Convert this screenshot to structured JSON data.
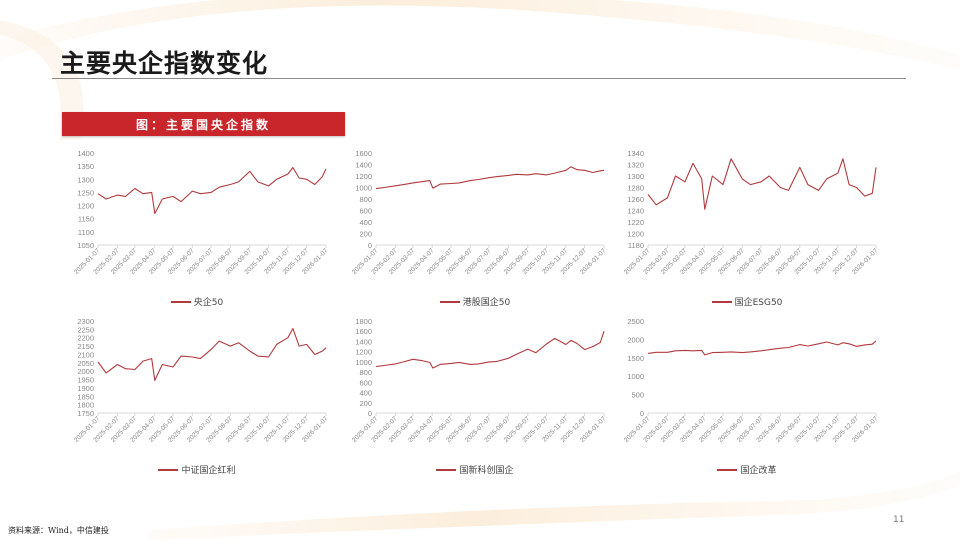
{
  "page": {
    "title": "主要央企指数变化",
    "figure_banner": "图：主要国央企指数",
    "source": "资料来源：Wind，中信建投",
    "page_number": "11"
  },
  "colors": {
    "line": "#b03a3e",
    "banner": "#c8262b",
    "axis_text": "#888888",
    "axis_line": "#d9d9d9"
  },
  "x_ticks": [
    "2025-01-07",
    "2025-02-07",
    "2025-03-07",
    "2025-04-07",
    "2025-05-07",
    "2025-06-07",
    "2025-07-07",
    "2025-08-07",
    "2025-09-07",
    "2025-10-07",
    "2025-11-07",
    "2025-12-07",
    "2026-01-07"
  ],
  "chart_data": [
    {
      "type": "line",
      "title": "央企50",
      "legend": [
        "央企50"
      ],
      "ylim": [
        1050,
        1400
      ],
      "yticks": [
        1050,
        1100,
        1150,
        1200,
        1250,
        1300,
        1350,
        1400
      ],
      "x": [
        "2025-01-07",
        "2025-01-20",
        "2025-02-07",
        "2025-02-20",
        "2025-03-07",
        "2025-03-20",
        "2025-04-03",
        "2025-04-08",
        "2025-04-20",
        "2025-05-07",
        "2025-05-20",
        "2025-06-07",
        "2025-06-20",
        "2025-07-07",
        "2025-07-20",
        "2025-08-07",
        "2025-08-20",
        "2025-09-07",
        "2025-09-20",
        "2025-10-07",
        "2025-10-20",
        "2025-11-07",
        "2025-11-15",
        "2025-11-25",
        "2025-12-07",
        "2025-12-20",
        "2026-01-01",
        "2026-01-07"
      ],
      "values": [
        1245,
        1225,
        1240,
        1235,
        1265,
        1245,
        1250,
        1170,
        1225,
        1235,
        1215,
        1255,
        1245,
        1250,
        1270,
        1280,
        1290,
        1330,
        1290,
        1275,
        1300,
        1320,
        1345,
        1305,
        1300,
        1280,
        1310,
        1340
      ]
    },
    {
      "type": "line",
      "title": "港股国企50",
      "legend": [
        "港股国企50"
      ],
      "ylim": [
        0,
        1600
      ],
      "yticks": [
        0,
        200,
        400,
        600,
        800,
        1000,
        1200,
        1400,
        1600
      ],
      "x": [
        "2025-01-07",
        "2025-01-20",
        "2025-02-07",
        "2025-02-20",
        "2025-03-07",
        "2025-03-20",
        "2025-04-03",
        "2025-04-08",
        "2025-04-20",
        "2025-05-07",
        "2025-05-20",
        "2025-06-07",
        "2025-06-20",
        "2025-07-07",
        "2025-07-20",
        "2025-08-07",
        "2025-08-20",
        "2025-09-07",
        "2025-09-20",
        "2025-10-07",
        "2025-10-20",
        "2025-11-07",
        "2025-11-15",
        "2025-11-25",
        "2025-12-07",
        "2025-12-20",
        "2026-01-01",
        "2026-01-07"
      ],
      "values": [
        980,
        1000,
        1030,
        1050,
        1080,
        1100,
        1120,
        990,
        1060,
        1070,
        1080,
        1120,
        1140,
        1170,
        1190,
        1210,
        1230,
        1220,
        1240,
        1220,
        1250,
        1300,
        1360,
        1310,
        1300,
        1260,
        1290,
        1300
      ]
    },
    {
      "type": "line",
      "title": "国企ESG50",
      "legend": [
        "国企ESG50"
      ],
      "ylim": [
        1180,
        1340
      ],
      "yticks": [
        1180,
        1200,
        1220,
        1240,
        1260,
        1280,
        1300,
        1320,
        1340
      ],
      "x": [
        "2025-01-07",
        "2025-01-20",
        "2025-02-07",
        "2025-02-20",
        "2025-03-07",
        "2025-03-20",
        "2025-04-03",
        "2025-04-08",
        "2025-04-20",
        "2025-05-07",
        "2025-05-20",
        "2025-06-07",
        "2025-06-20",
        "2025-07-07",
        "2025-07-20",
        "2025-08-07",
        "2025-08-20",
        "2025-09-07",
        "2025-09-20",
        "2025-10-07",
        "2025-10-20",
        "2025-11-07",
        "2025-11-15",
        "2025-11-25",
        "2025-12-07",
        "2025-12-20",
        "2026-01-01",
        "2026-01-07"
      ],
      "values": [
        1268,
        1250,
        1262,
        1300,
        1290,
        1322,
        1295,
        1242,
        1300,
        1285,
        1330,
        1295,
        1285,
        1290,
        1300,
        1280,
        1275,
        1315,
        1285,
        1275,
        1295,
        1305,
        1330,
        1285,
        1280,
        1265,
        1270,
        1315
      ]
    },
    {
      "type": "line",
      "title": "中证国企红利",
      "legend": [
        "中证国企红利"
      ],
      "ylim": [
        1750,
        2300
      ],
      "yticks": [
        1750,
        1800,
        1850,
        1900,
        1950,
        2000,
        2050,
        2100,
        2150,
        2200,
        2250,
        2300
      ],
      "x": [
        "2025-01-07",
        "2025-01-20",
        "2025-02-07",
        "2025-02-20",
        "2025-03-07",
        "2025-03-20",
        "2025-04-03",
        "2025-04-08",
        "2025-04-20",
        "2025-05-07",
        "2025-05-20",
        "2025-06-07",
        "2025-06-20",
        "2025-07-07",
        "2025-07-20",
        "2025-08-07",
        "2025-08-20",
        "2025-09-07",
        "2025-09-20",
        "2025-10-07",
        "2025-10-20",
        "2025-11-07",
        "2025-11-15",
        "2025-11-25",
        "2025-12-07",
        "2025-12-20",
        "2026-01-01",
        "2026-01-07"
      ],
      "values": [
        2055,
        1990,
        2040,
        2015,
        2010,
        2060,
        2075,
        1945,
        2040,
        2025,
        2090,
        2085,
        2075,
        2130,
        2180,
        2150,
        2170,
        2120,
        2090,
        2085,
        2160,
        2200,
        2255,
        2150,
        2160,
        2100,
        2120,
        2140
      ]
    },
    {
      "type": "line",
      "title": "国新科创国企",
      "legend": [
        "国新科创国企"
      ],
      "ylim": [
        0,
        1800
      ],
      "yticks": [
        0,
        200,
        400,
        600,
        800,
        1000,
        1200,
        1400,
        1600,
        1800
      ],
      "x": [
        "2025-01-07",
        "2025-01-20",
        "2025-02-07",
        "2025-02-20",
        "2025-03-07",
        "2025-03-20",
        "2025-04-03",
        "2025-04-08",
        "2025-04-20",
        "2025-05-07",
        "2025-05-20",
        "2025-06-07",
        "2025-06-20",
        "2025-07-07",
        "2025-07-20",
        "2025-08-07",
        "2025-08-20",
        "2025-09-07",
        "2025-09-20",
        "2025-10-07",
        "2025-10-20",
        "2025-11-07",
        "2025-11-15",
        "2025-11-25",
        "2025-12-07",
        "2025-12-20",
        "2026-01-01",
        "2026-01-07"
      ],
      "values": [
        910,
        930,
        960,
        1000,
        1050,
        1030,
        990,
        880,
        950,
        970,
        990,
        950,
        960,
        1000,
        1010,
        1070,
        1150,
        1250,
        1180,
        1350,
        1460,
        1340,
        1420,
        1360,
        1240,
        1300,
        1380,
        1600
      ]
    },
    {
      "type": "line",
      "title": "国企改革",
      "legend": [
        "国企改革"
      ],
      "ylim": [
        0,
        2500
      ],
      "yticks": [
        0,
        500,
        1000,
        1500,
        2000,
        2500
      ],
      "x": [
        "2025-01-07",
        "2025-01-20",
        "2025-02-07",
        "2025-02-20",
        "2025-03-07",
        "2025-03-20",
        "2025-04-03",
        "2025-04-08",
        "2025-04-20",
        "2025-05-07",
        "2025-05-20",
        "2025-06-07",
        "2025-06-20",
        "2025-07-07",
        "2025-07-20",
        "2025-08-07",
        "2025-08-20",
        "2025-09-07",
        "2025-09-20",
        "2025-10-07",
        "2025-10-20",
        "2025-11-07",
        "2025-11-15",
        "2025-11-25",
        "2025-12-07",
        "2025-12-20",
        "2026-01-01",
        "2026-01-07"
      ],
      "values": [
        1620,
        1650,
        1650,
        1690,
        1700,
        1690,
        1700,
        1580,
        1640,
        1650,
        1660,
        1640,
        1660,
        1690,
        1720,
        1760,
        1780,
        1860,
        1820,
        1880,
        1930,
        1850,
        1910,
        1880,
        1810,
        1850,
        1870,
        1960
      ]
    }
  ]
}
